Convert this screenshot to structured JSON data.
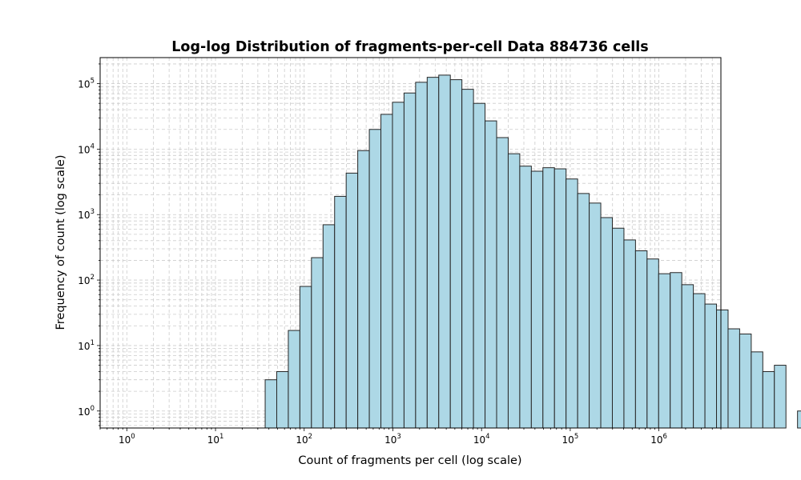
{
  "chart_data": {
    "type": "bar",
    "title": "Log-log Distribution of fragments-per-cell Data 884736 cells",
    "xlabel": "Count of fragments per cell (log scale)",
    "ylabel": "Frequency of count (log scale)",
    "xscale": "log",
    "yscale": "log",
    "xlim": [
      0.5,
      5000000
    ],
    "ylim": [
      0.55,
      250000
    ],
    "grid": true,
    "x_ticks": [
      {
        "base": "10",
        "exp": "0",
        "value": 1
      },
      {
        "base": "10",
        "exp": "1",
        "value": 10
      },
      {
        "base": "10",
        "exp": "2",
        "value": 100
      },
      {
        "base": "10",
        "exp": "3",
        "value": 1000
      },
      {
        "base": "10",
        "exp": "4",
        "value": 10000
      },
      {
        "base": "10",
        "exp": "5",
        "value": 100000
      },
      {
        "base": "10",
        "exp": "6",
        "value": 1000000
      }
    ],
    "y_ticks": [
      {
        "base": "10",
        "exp": "0",
        "value": 1
      },
      {
        "base": "10",
        "exp": "1",
        "value": 10
      },
      {
        "base": "10",
        "exp": "2",
        "value": 100
      },
      {
        "base": "10",
        "exp": "3",
        "value": 1000
      },
      {
        "base": "10",
        "exp": "4",
        "value": 10000
      },
      {
        "base": "10",
        "exp": "5",
        "value": 100000
      }
    ],
    "bin_log10_start": 0.255,
    "bin_log10_width": 0.1305,
    "counts": [
      0,
      0,
      0,
      0,
      0,
      0,
      0,
      0,
      0,
      0,
      3,
      4,
      17,
      80,
      220,
      700,
      1900,
      4300,
      9500,
      20000,
      34000,
      52000,
      72000,
      105000,
      125000,
      135000,
      115000,
      82000,
      50000,
      27000,
      15000,
      8500,
      5500,
      4600,
      5200,
      5000,
      3500,
      2100,
      1500,
      900,
      620,
      410,
      280,
      210,
      125,
      130,
      85,
      62,
      43,
      35,
      18,
      15,
      8,
      4,
      5,
      0,
      1
    ],
    "style": {
      "bar_fill": "#add8e6",
      "bar_edge": "#262626",
      "grid_color": "#cccccc"
    }
  }
}
